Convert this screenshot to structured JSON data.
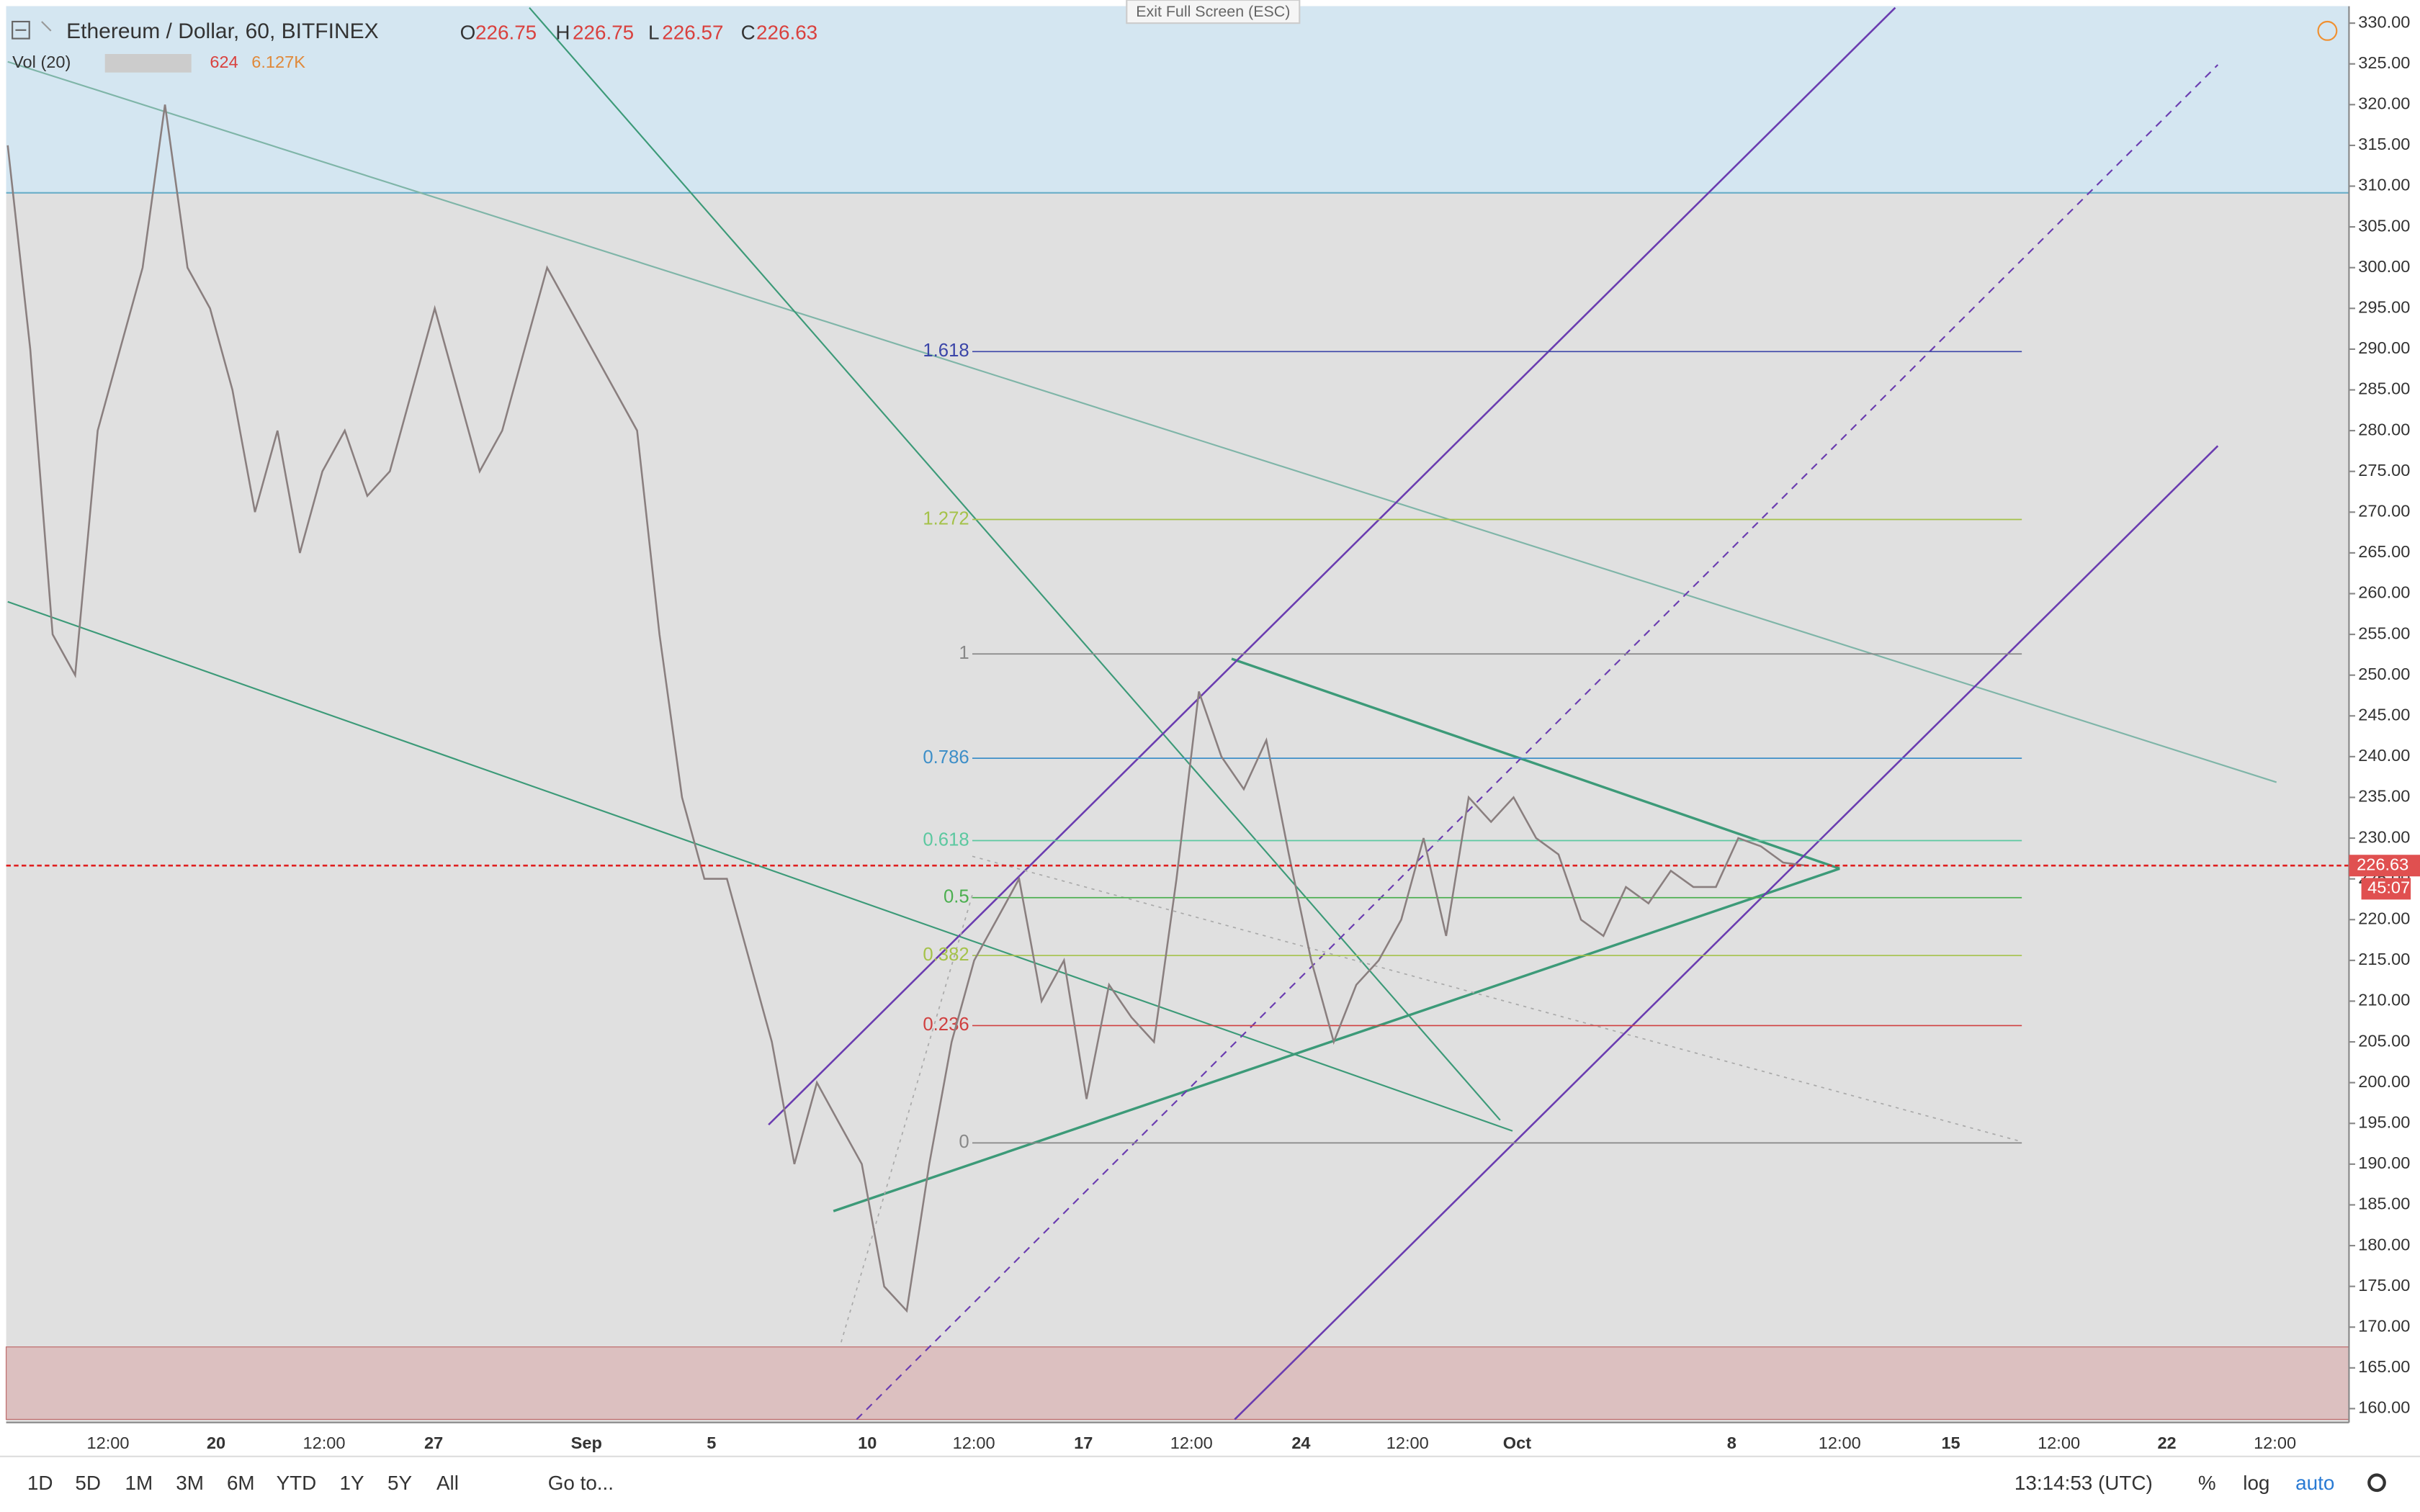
{
  "header": {
    "title": "Ethereum / Dollar, 60, BITFINEX",
    "open_label": "O",
    "open": "226.75",
    "high_label": "H",
    "high": "226.75",
    "low_label": "L",
    "low": "226.57",
    "close_label": "C",
    "close": "226.63",
    "volume_label": "Vol (20)",
    "volume": "624",
    "volume_ma": "6.127K",
    "exit_button": "Exit Full Screen (ESC)"
  },
  "price_axis": {
    "ylim": [
      160,
      330
    ],
    "ticks": [
      {
        "value": 160,
        "label": "160.00"
      },
      {
        "value": 165,
        "label": "165.00"
      },
      {
        "value": 170,
        "label": "170.00"
      },
      {
        "value": 175,
        "label": "175.00"
      },
      {
        "value": 180,
        "label": "180.00"
      },
      {
        "value": 185,
        "label": "185.00"
      },
      {
        "value": 190,
        "label": "190.00"
      },
      {
        "value": 195,
        "label": "195.00"
      },
      {
        "value": 200,
        "label": "200.00"
      },
      {
        "value": 205,
        "label": "205.00"
      },
      {
        "value": 210,
        "label": "210.00"
      },
      {
        "value": 215,
        "label": "215.00"
      },
      {
        "value": 220,
        "label": "220.00"
      },
      {
        "value": 225,
        "label": "225.00"
      },
      {
        "value": 230,
        "label": "230.00"
      },
      {
        "value": 235,
        "label": "235.00"
      },
      {
        "value": 240,
        "label": "240.00"
      },
      {
        "value": 245,
        "label": "245.00"
      },
      {
        "value": 250,
        "label": "250.00"
      },
      {
        "value": 255,
        "label": "255.00"
      },
      {
        "value": 260,
        "label": "260.00"
      },
      {
        "value": 265,
        "label": "265.00"
      },
      {
        "value": 270,
        "label": "270.00"
      },
      {
        "value": 275,
        "label": "275.00"
      },
      {
        "value": 280,
        "label": "280.00"
      },
      {
        "value": 285,
        "label": "285.00"
      },
      {
        "value": 290,
        "label": "290.00"
      },
      {
        "value": 295,
        "label": "295.00"
      },
      {
        "value": 300,
        "label": "300.00"
      },
      {
        "value": 305,
        "label": "305.00"
      },
      {
        "value": 310,
        "label": "310.00"
      },
      {
        "value": 315,
        "label": "315.00"
      },
      {
        "value": 320,
        "label": "320.00"
      },
      {
        "value": 325,
        "label": "325.00"
      },
      {
        "value": 330,
        "label": "330.00"
      }
    ],
    "current_price": {
      "value": 226.63,
      "label": "226.63"
    },
    "countdown": "45:07"
  },
  "time_axis": {
    "labels": [
      "12:00",
      "20",
      "12:00",
      "27",
      "Sep",
      "5",
      "10",
      "12:00",
      "17",
      "12:00",
      "24",
      "12:00",
      "Oct",
      "8",
      "12:00",
      "15",
      "12:00",
      "22",
      "12:00"
    ]
  },
  "fib_levels": [
    {
      "label": "1.618",
      "price": 289.7,
      "color": "#3b45a8"
    },
    {
      "label": "1.272",
      "price": 269.1,
      "color": "#a5c24a"
    },
    {
      "label": "1",
      "price": 252.6,
      "color": "#888888"
    },
    {
      "label": "0.786",
      "price": 239.8,
      "color": "#3e8fc8"
    },
    {
      "label": "0.618",
      "price": 229.7,
      "color": "#5cc8a0"
    },
    {
      "label": "0.5",
      "price": 222.7,
      "color": "#4caf50"
    },
    {
      "label": "0.382",
      "price": 215.6,
      "color": "#a5c24a"
    },
    {
      "label": "0.236",
      "price": 207,
      "color": "#d04040"
    },
    {
      "label": "0",
      "price": 192.6,
      "color": "#888888"
    }
  ],
  "price_series": {
    "color": "#8a7f7f",
    "values": [
      315,
      290,
      255,
      250,
      280,
      290,
      300,
      320,
      300,
      295,
      285,
      270,
      280,
      265,
      275,
      280,
      272,
      275,
      285,
      295,
      285,
      275,
      280,
      290,
      300,
      295,
      290,
      285,
      280,
      255,
      235,
      225,
      225,
      215,
      205,
      190,
      200,
      195,
      190,
      175,
      172,
      190,
      205,
      215,
      220,
      225,
      210,
      215,
      198,
      212,
      208,
      205,
      225,
      248,
      240,
      236,
      242,
      228,
      215,
      205,
      212,
      215,
      220,
      230,
      218,
      235,
      232,
      235,
      230,
      228,
      220,
      218,
      224,
      222,
      226,
      224,
      224,
      230,
      229,
      227,
      226.63
    ]
  },
  "toolbar": {
    "ranges": [
      "1D",
      "5D",
      "1M",
      "3M",
      "6M",
      "YTD",
      "1Y",
      "5Y",
      "All"
    ],
    "goto": "Go to...",
    "clock": "13:14:53 (UTC)",
    "percent": "%",
    "log": "log",
    "auto": "auto"
  }
}
